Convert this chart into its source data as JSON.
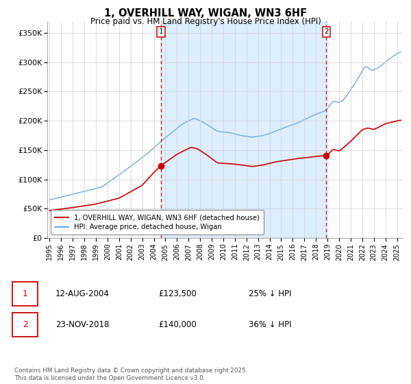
{
  "title_line1": "1, OVERHILL WAY, WIGAN, WN3 6HF",
  "title_line2": "Price paid vs. HM Land Registry's House Price Index (HPI)",
  "xlim_start": 1994.8,
  "xlim_end": 2025.5,
  "ylim_min": 0,
  "ylim_max": 370000,
  "yticks": [
    0,
    50000,
    100000,
    150000,
    200000,
    250000,
    300000,
    350000
  ],
  "ytick_labels": [
    "£0",
    "£50K",
    "£100K",
    "£150K",
    "£200K",
    "£250K",
    "£300K",
    "£350K"
  ],
  "hpi_color": "#6fa8dc",
  "hpi_fill_color": "#ddeeff",
  "price_color": "#cc0000",
  "vline_color": "#cc0000",
  "sale1_date_num": 2004.61,
  "sale1_price": 123500,
  "sale1_label": "1",
  "sale2_date_num": 2018.9,
  "sale2_price": 140000,
  "sale2_label": "2",
  "legend_label_price": "1, OVERHILL WAY, WIGAN, WN3 6HF (detached house)",
  "legend_label_hpi": "HPI: Average price, detached house, Wigan",
  "annotation1_date": "12-AUG-2004",
  "annotation1_price": "£123,500",
  "annotation1_hpi": "25% ↓ HPI",
  "annotation2_date": "23-NOV-2018",
  "annotation2_price": "£140,000",
  "annotation2_hpi": "36% ↓ HPI",
  "footnote": "Contains HM Land Registry data © Crown copyright and database right 2025.\nThis data is licensed under the Open Government Licence v3.0.",
  "bg_color": "#ffffff",
  "grid_color": "#cccccc",
  "xticks": [
    1995,
    1996,
    1997,
    1998,
    1999,
    2000,
    2001,
    2002,
    2003,
    2004,
    2005,
    2006,
    2007,
    2008,
    2009,
    2010,
    2011,
    2012,
    2013,
    2014,
    2015,
    2016,
    2017,
    2018,
    2019,
    2020,
    2021,
    2022,
    2023,
    2024,
    2025
  ]
}
